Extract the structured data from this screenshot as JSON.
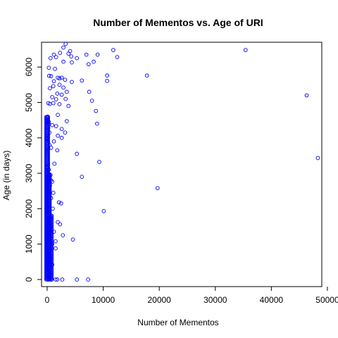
{
  "chart_data": {
    "type": "scatter",
    "title": "Number of Mementos vs. Age of URI",
    "xlabel": "Number of Mementos",
    "ylabel": "Age (in days)",
    "xlim": [
      -1000,
      49000
    ],
    "ylim": [
      -200,
      6700
    ],
    "x_ticks": [
      0,
      10000,
      20000,
      30000,
      40000,
      50000
    ],
    "y_ticks": [
      0,
      1000,
      2000,
      3000,
      4000,
      5000,
      6000
    ],
    "x_tick_labels": [
      "0",
      "10000",
      "20000",
      "30000",
      "40000",
      "50000"
    ],
    "y_tick_labels": [
      "0",
      "1000",
      "2000",
      "3000",
      "4000",
      "5000",
      "6000"
    ],
    "grid": false,
    "legend": "none",
    "marker_color": "#0000ff",
    "marker": "open-circle",
    "points": [
      [
        3300,
        6650
      ],
      [
        2900,
        6550
      ],
      [
        11800,
        6480
      ],
      [
        35400,
        6480
      ],
      [
        4100,
        6450
      ],
      [
        2300,
        6400
      ],
      [
        3800,
        6380
      ],
      [
        1200,
        6350
      ],
      [
        7000,
        6350
      ],
      [
        9000,
        6350
      ],
      [
        4300,
        6300
      ],
      [
        12500,
        6280
      ],
      [
        1600,
        6280
      ],
      [
        5300,
        6250
      ],
      [
        600,
        6250
      ],
      [
        2900,
        6150
      ],
      [
        4400,
        6130
      ],
      [
        8300,
        6150
      ],
      [
        7400,
        6080
      ],
      [
        300,
        5980
      ],
      [
        1400,
        5950
      ],
      [
        17800,
        5760
      ],
      [
        10700,
        5760
      ],
      [
        350,
        5750
      ],
      [
        700,
        5740
      ],
      [
        1900,
        5700
      ],
      [
        2600,
        5700
      ],
      [
        2200,
        5680
      ],
      [
        3200,
        5640
      ],
      [
        1200,
        5600
      ],
      [
        6200,
        5620
      ],
      [
        10700,
        5610
      ],
      [
        4400,
        5580
      ],
      [
        2200,
        5500
      ],
      [
        1100,
        5460
      ],
      [
        500,
        5400
      ],
      [
        2900,
        5420
      ],
      [
        3500,
        5300
      ],
      [
        7500,
        5300
      ],
      [
        1800,
        5250
      ],
      [
        2600,
        5220
      ],
      [
        46300,
        5200
      ],
      [
        900,
        5150
      ],
      [
        3300,
        5100
      ],
      [
        1600,
        5090
      ],
      [
        8000,
        5050
      ],
      [
        200,
        4980
      ],
      [
        500,
        4960
      ],
      [
        1100,
        4980
      ],
      [
        3800,
        4900
      ],
      [
        2200,
        4950
      ],
      [
        8700,
        4760
      ],
      [
        1900,
        4650
      ],
      [
        100,
        4600
      ],
      [
        100,
        4480
      ],
      [
        300,
        4450
      ],
      [
        3500,
        4470
      ],
      [
        8900,
        4400
      ],
      [
        300,
        4380
      ],
      [
        900,
        4360
      ],
      [
        1600,
        4330
      ],
      [
        200,
        4280
      ],
      [
        2600,
        4250
      ],
      [
        400,
        4150
      ],
      [
        3200,
        4150
      ],
      [
        1900,
        4060
      ],
      [
        2600,
        4000
      ],
      [
        100,
        3980
      ],
      [
        1200,
        3900
      ],
      [
        400,
        3800
      ],
      [
        200,
        3700
      ],
      [
        700,
        3720
      ],
      [
        1800,
        3650
      ],
      [
        5300,
        3550
      ],
      [
        48300,
        3430
      ],
      [
        9300,
        3320
      ],
      [
        1300,
        3270
      ],
      [
        100,
        3250
      ],
      [
        100,
        3180
      ],
      [
        300,
        3100
      ],
      [
        100,
        3000
      ],
      [
        600,
        2950
      ],
      [
        6200,
        2900
      ],
      [
        200,
        2850
      ],
      [
        700,
        2800
      ],
      [
        900,
        2760
      ],
      [
        100,
        2700
      ],
      [
        500,
        2650
      ],
      [
        19700,
        2580
      ],
      [
        300,
        2500
      ],
      [
        1100,
        2450
      ],
      [
        100,
        2400
      ],
      [
        700,
        2300
      ],
      [
        2100,
        2180
      ],
      [
        2500,
        2150
      ],
      [
        100,
        2050
      ],
      [
        1000,
        2000
      ],
      [
        200,
        1900
      ],
      [
        10100,
        1930
      ],
      [
        800,
        1800
      ],
      [
        100,
        1700
      ],
      [
        1900,
        1620
      ],
      [
        2300,
        1560
      ],
      [
        600,
        1500
      ],
      [
        100,
        1400
      ],
      [
        1200,
        1350
      ],
      [
        200,
        1250
      ],
      [
        2800,
        1250
      ],
      [
        100,
        1150
      ],
      [
        4600,
        1130
      ],
      [
        1500,
        1080
      ],
      [
        900,
        1000
      ],
      [
        100,
        960
      ],
      [
        1500,
        880
      ],
      [
        100,
        800
      ],
      [
        400,
        700
      ],
      [
        100,
        600
      ],
      [
        100,
        480
      ],
      [
        900,
        420
      ],
      [
        300,
        300
      ],
      [
        100,
        200
      ],
      [
        100,
        100
      ],
      [
        300,
        60
      ],
      [
        800,
        0
      ],
      [
        1500,
        0
      ],
      [
        1800,
        0
      ],
      [
        2700,
        0
      ],
      [
        5300,
        0
      ],
      [
        7300,
        0
      ]
    ],
    "dense_band": {
      "x_values": [
        -150,
        0,
        150,
        300,
        450,
        600,
        800
      ],
      "y_min": 0,
      "y_max": 4600,
      "y_step": 45
    }
  }
}
